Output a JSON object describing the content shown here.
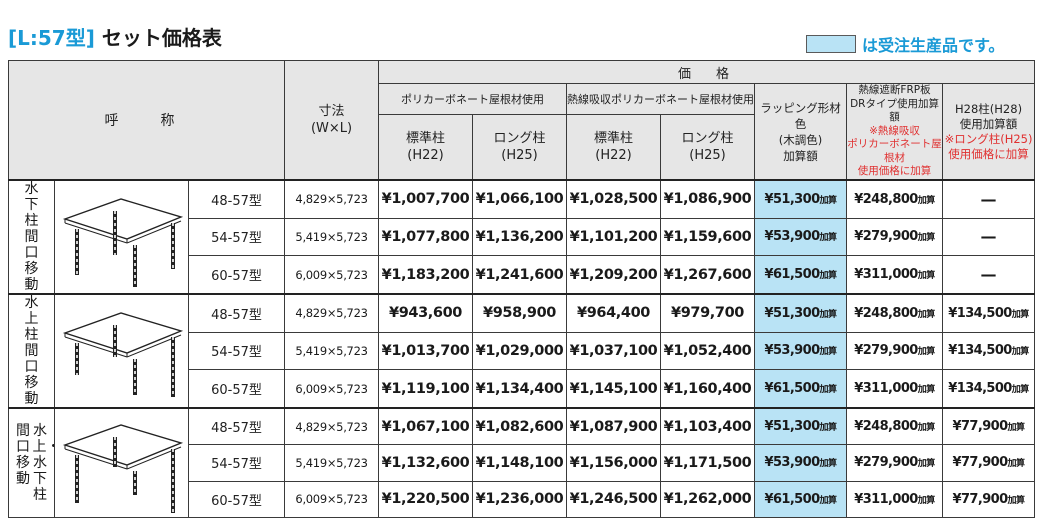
{
  "title": {
    "bracket": "[L:57型]",
    "text": "セット価格表"
  },
  "legend": {
    "text": "は受注生産品です。",
    "color": "#b9e3f5"
  },
  "header": {
    "name": "呼　称",
    "size_line1": "寸法",
    "size_line2": "(W×L)",
    "price": "価　格",
    "poly_group": "ポリカーボネート屋根材使用",
    "heat_group": "熱線吸収ポリカーボネート屋根材使用",
    "std_l1": "標準柱",
    "std_l2": "(H22)",
    "long_l1": "ロング柱",
    "long_l2": "(H25)",
    "wrap_l1": "ラッピング形材色",
    "wrap_l2": "(木調色)",
    "wrap_l3": "加算額",
    "frp_l1": "熱線遮断FRP板",
    "frp_l2": "DRタイプ使用加算額",
    "frp_n1": "※熱線吸収",
    "frp_n2": "ポリカーボネート屋根材",
    "frp_n3": "使用価格に加算",
    "h28_l1": "H28柱(H28)",
    "h28_l2": "使用加算額",
    "h28_n1": "※ロング柱(H25)",
    "h28_n2": "使用価格に加算"
  },
  "add_suffix": "加算",
  "groups": [
    {
      "label": "水下柱間口移動",
      "label_col1": "",
      "label_col2": "",
      "rows": [
        {
          "model": "48-57型",
          "size": "4,829×5,723",
          "poly_std": "¥1,007,700",
          "poly_long": "¥1,066,100",
          "heat_std": "¥1,028,500",
          "heat_long": "¥1,086,900",
          "wrap": "¥51,300",
          "frp": "¥248,800",
          "h28": "—"
        },
        {
          "model": "54-57型",
          "size": "5,419×5,723",
          "poly_std": "¥1,077,800",
          "poly_long": "¥1,136,200",
          "heat_std": "¥1,101,200",
          "heat_long": "¥1,159,600",
          "wrap": "¥53,900",
          "frp": "¥279,900",
          "h28": "—"
        },
        {
          "model": "60-57型",
          "size": "6,009×5,723",
          "poly_std": "¥1,183,200",
          "poly_long": "¥1,241,600",
          "heat_std": "¥1,209,200",
          "heat_long": "¥1,267,600",
          "wrap": "¥61,500",
          "frp": "¥311,000",
          "h28": "—"
        }
      ]
    },
    {
      "label": "水上柱間口移動",
      "label_col1": "",
      "label_col2": "",
      "rows": [
        {
          "model": "48-57型",
          "size": "4,829×5,723",
          "poly_std": "¥943,600",
          "poly_long": "¥958,900",
          "heat_std": "¥964,400",
          "heat_long": "¥979,700",
          "wrap": "¥51,300",
          "frp": "¥248,800",
          "h28": "¥134,500"
        },
        {
          "model": "54-57型",
          "size": "5,419×5,723",
          "poly_std": "¥1,013,700",
          "poly_long": "¥1,029,000",
          "heat_std": "¥1,037,100",
          "heat_long": "¥1,052,400",
          "wrap": "¥53,900",
          "frp": "¥279,900",
          "h28": "¥134,500"
        },
        {
          "model": "60-57型",
          "size": "6,009×5,723",
          "poly_std": "¥1,119,100",
          "poly_long": "¥1,134,400",
          "heat_std": "¥1,145,100",
          "heat_long": "¥1,160,400",
          "wrap": "¥61,500",
          "frp": "¥311,000",
          "h28": "¥134,500"
        }
      ]
    },
    {
      "label": "",
      "label_col1": "水上・水下柱",
      "label_col2": "間口移動",
      "rows": [
        {
          "model": "48-57型",
          "size": "4,829×5,723",
          "poly_std": "¥1,067,100",
          "poly_long": "¥1,082,600",
          "heat_std": "¥1,087,900",
          "heat_long": "¥1,103,400",
          "wrap": "¥51,300",
          "frp": "¥248,800",
          "h28": "¥77,900"
        },
        {
          "model": "54-57型",
          "size": "5,419×5,723",
          "poly_std": "¥1,132,600",
          "poly_long": "¥1,148,100",
          "heat_std": "¥1,156,000",
          "heat_long": "¥1,171,500",
          "wrap": "¥53,900",
          "frp": "¥279,900",
          "h28": "¥77,900"
        },
        {
          "model": "60-57型",
          "size": "6,009×5,723",
          "poly_std": "¥1,220,500",
          "poly_long": "¥1,236,000",
          "heat_std": "¥1,246,500",
          "heat_long": "¥1,262,000",
          "wrap": "¥61,500",
          "frp": "¥311,000",
          "h28": "¥77,900"
        }
      ]
    }
  ]
}
